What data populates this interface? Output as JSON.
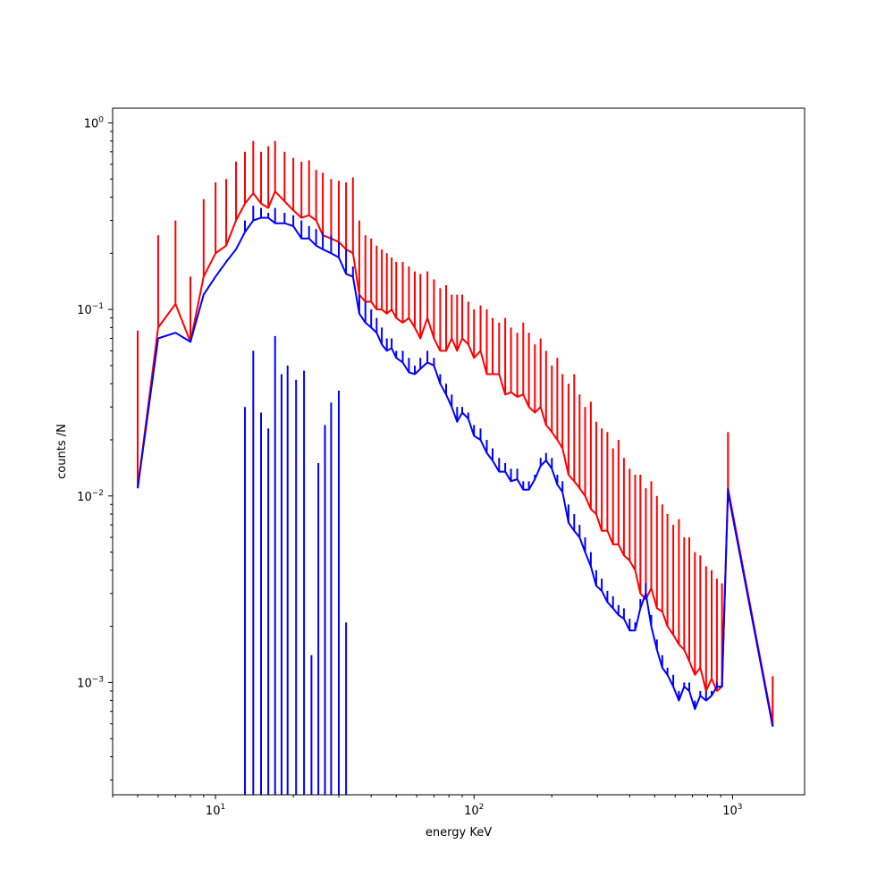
{
  "chart_data": {
    "type": "line",
    "xlabel": "energy KeV",
    "ylabel": "counts /N",
    "xscale": "log",
    "yscale": "log",
    "xlim": [
      4.0,
      1900
    ],
    "ylim": [
      0.00025,
      1.2
    ],
    "x_ticks": [
      {
        "value": 10,
        "base": "10",
        "exp": "1"
      },
      {
        "value": 100,
        "base": "10",
        "exp": "2"
      },
      {
        "value": 1000,
        "base": "10",
        "exp": "3"
      }
    ],
    "y_ticks": [
      {
        "value": 0.001,
        "base": "10",
        "exp": "−3"
      },
      {
        "value": 0.01,
        "base": "10",
        "exp": "−2"
      },
      {
        "value": 0.1,
        "base": "10",
        "exp": "−1"
      },
      {
        "value": 1,
        "base": "10",
        "exp": "0"
      }
    ],
    "grid": false,
    "legend": "none",
    "series": [
      {
        "color": "#ff0000",
        "points": [
          [
            5.0,
            0.011,
            0.077
          ],
          [
            6.0,
            0.08,
            0.25
          ],
          [
            7.0,
            0.107,
            0.3
          ],
          [
            8.0,
            0.067,
            0.15
          ],
          [
            9.0,
            0.15,
            0.39
          ],
          [
            10.0,
            0.2,
            0.48
          ],
          [
            11.0,
            0.22,
            0.5
          ],
          [
            12.0,
            0.3,
            0.62
          ],
          [
            13.0,
            0.37,
            0.7
          ],
          [
            14.0,
            0.42,
            0.8
          ],
          [
            15.0,
            0.37,
            0.7
          ],
          [
            16.0,
            0.35,
            0.75
          ],
          [
            17.0,
            0.43,
            0.8
          ],
          [
            18.5,
            0.38,
            0.7
          ],
          [
            20.0,
            0.34,
            0.65
          ],
          [
            21.5,
            0.31,
            0.62
          ],
          [
            23.0,
            0.32,
            0.63
          ],
          [
            24.5,
            0.3,
            0.56
          ],
          [
            26.0,
            0.25,
            0.54
          ],
          [
            28.0,
            0.24,
            0.5
          ],
          [
            30.0,
            0.23,
            0.49
          ],
          [
            32.0,
            0.21,
            0.48
          ],
          [
            34.0,
            0.2,
            0.51
          ],
          [
            36.0,
            0.12,
            0.3
          ],
          [
            38.0,
            0.11,
            0.25
          ],
          [
            40.0,
            0.11,
            0.24
          ],
          [
            42.0,
            0.1,
            0.22
          ],
          [
            44.0,
            0.1,
            0.21
          ],
          [
            46.0,
            0.095,
            0.2
          ],
          [
            48.0,
            0.1,
            0.19
          ],
          [
            50.0,
            0.09,
            0.18
          ],
          [
            53.0,
            0.085,
            0.18
          ],
          [
            56.0,
            0.09,
            0.17
          ],
          [
            59.0,
            0.08,
            0.16
          ],
          [
            62.0,
            0.07,
            0.155
          ],
          [
            66.0,
            0.09,
            0.16
          ],
          [
            70.0,
            0.07,
            0.145
          ],
          [
            74.0,
            0.06,
            0.13
          ],
          [
            78.0,
            0.06,
            0.135
          ],
          [
            82.0,
            0.07,
            0.12
          ],
          [
            86.0,
            0.06,
            0.12
          ],
          [
            90.0,
            0.07,
            0.12
          ],
          [
            95.0,
            0.065,
            0.11
          ],
          [
            100.0,
            0.055,
            0.1
          ],
          [
            106.0,
            0.06,
            0.105
          ],
          [
            112.0,
            0.045,
            0.1
          ],
          [
            118.0,
            0.045,
            0.09
          ],
          [
            125.0,
            0.045,
            0.085
          ],
          [
            132.0,
            0.035,
            0.09
          ],
          [
            139.0,
            0.036,
            0.08
          ],
          [
            147.0,
            0.034,
            0.075
          ],
          [
            155.0,
            0.035,
            0.085
          ],
          [
            163.0,
            0.03,
            0.075
          ],
          [
            172.0,
            0.028,
            0.065
          ],
          [
            181.0,
            0.03,
            0.07
          ],
          [
            190.0,
            0.024,
            0.06
          ],
          [
            200.0,
            0.022,
            0.05
          ],
          [
            210.0,
            0.02,
            0.055
          ],
          [
            220.0,
            0.018,
            0.045
          ],
          [
            232.0,
            0.013,
            0.04
          ],
          [
            244.0,
            0.012,
            0.045
          ],
          [
            256.0,
            0.011,
            0.035
          ],
          [
            269.0,
            0.01,
            0.03
          ],
          [
            283.0,
            0.0085,
            0.032
          ],
          [
            297.0,
            0.008,
            0.025
          ],
          [
            312.0,
            0.0065,
            0.023
          ],
          [
            328.0,
            0.0065,
            0.022
          ],
          [
            345.0,
            0.0055,
            0.018
          ],
          [
            362.0,
            0.0055,
            0.02
          ],
          [
            380.0,
            0.0048,
            0.016
          ],
          [
            400.0,
            0.0045,
            0.014
          ],
          [
            420.0,
            0.004,
            0.013
          ],
          [
            440.0,
            0.003,
            0.013
          ],
          [
            462.0,
            0.0028,
            0.011
          ],
          [
            485.0,
            0.0032,
            0.012
          ],
          [
            510.0,
            0.0025,
            0.01
          ],
          [
            535.0,
            0.0024,
            0.009
          ],
          [
            560.0,
            0.002,
            0.008
          ],
          [
            590.0,
            0.0018,
            0.007
          ],
          [
            620.0,
            0.0016,
            0.0075
          ],
          [
            650.0,
            0.0015,
            0.006
          ],
          [
            680.0,
            0.0013,
            0.006
          ],
          [
            715.0,
            0.0011,
            0.005
          ],
          [
            750.0,
            0.0012,
            0.0048
          ],
          [
            790.0,
            0.0009,
            0.0042
          ],
          [
            830.0,
            0.00105,
            0.004
          ],
          [
            870.0,
            0.0009,
            0.0036
          ],
          [
            910.0,
            0.00095,
            0.0034
          ],
          [
            960.0,
            0.011,
            0.022
          ],
          [
            1430.0,
            0.0006,
            0.00108
          ]
        ]
      },
      {
        "color": "#0000ff",
        "points": [
          [
            5.0,
            0.011,
            0.011
          ],
          [
            6.0,
            0.07,
            0.07
          ],
          [
            7.0,
            0.075,
            0.075
          ],
          [
            8.0,
            0.067,
            0.067
          ],
          [
            9.0,
            0.12,
            0.12
          ],
          [
            10.0,
            0.15,
            0.15
          ],
          [
            11.0,
            0.18,
            0.18
          ],
          [
            12.0,
            0.21,
            0.21
          ],
          [
            13.0,
            0.26,
            0.3
          ],
          [
            14.0,
            0.3,
            0.36
          ],
          [
            15.0,
            0.31,
            0.35
          ],
          [
            16.0,
            0.31,
            0.33
          ],
          [
            17.0,
            0.29,
            0.35
          ],
          [
            18.5,
            0.29,
            0.33
          ],
          [
            20.0,
            0.28,
            0.32
          ],
          [
            21.5,
            0.24,
            0.3
          ],
          [
            23.0,
            0.24,
            0.28
          ],
          [
            24.5,
            0.22,
            0.27
          ],
          [
            26.0,
            0.21,
            0.26
          ],
          [
            28.0,
            0.2,
            0.25
          ],
          [
            30.0,
            0.19,
            0.23
          ],
          [
            32.0,
            0.155,
            0.21
          ],
          [
            34.0,
            0.15,
            0.17
          ],
          [
            36.0,
            0.095,
            0.12
          ],
          [
            38.0,
            0.085,
            0.11
          ],
          [
            40.0,
            0.08,
            0.1
          ],
          [
            42.0,
            0.075,
            0.09
          ],
          [
            44.0,
            0.065,
            0.08
          ],
          [
            46.0,
            0.06,
            0.07
          ],
          [
            48.0,
            0.062,
            0.07
          ],
          [
            50.0,
            0.055,
            0.06
          ],
          [
            53.0,
            0.052,
            0.06
          ],
          [
            56.0,
            0.046,
            0.055
          ],
          [
            59.0,
            0.045,
            0.05
          ],
          [
            62.0,
            0.048,
            0.055
          ],
          [
            66.0,
            0.052,
            0.06
          ],
          [
            70.0,
            0.05,
            0.055
          ],
          [
            74.0,
            0.04,
            0.045
          ],
          [
            78.0,
            0.035,
            0.04
          ],
          [
            82.0,
            0.03,
            0.035
          ],
          [
            86.0,
            0.025,
            0.03
          ],
          [
            90.0,
            0.028,
            0.03
          ],
          [
            95.0,
            0.026,
            0.028
          ],
          [
            100.0,
            0.021,
            0.024
          ],
          [
            106.0,
            0.02,
            0.023
          ],
          [
            112.0,
            0.017,
            0.02
          ],
          [
            118.0,
            0.0155,
            0.018
          ],
          [
            125.0,
            0.0135,
            0.016
          ],
          [
            132.0,
            0.0135,
            0.015
          ],
          [
            139.0,
            0.012,
            0.014
          ],
          [
            147.0,
            0.0123,
            0.014
          ],
          [
            155.0,
            0.0108,
            0.012
          ],
          [
            163.0,
            0.0108,
            0.012
          ],
          [
            172.0,
            0.0123,
            0.013
          ],
          [
            181.0,
            0.0145,
            0.016
          ],
          [
            190.0,
            0.0155,
            0.017
          ],
          [
            200.0,
            0.014,
            0.016
          ],
          [
            210.0,
            0.0115,
            0.013
          ],
          [
            220.0,
            0.0105,
            0.012
          ],
          [
            232.0,
            0.0072,
            0.009
          ],
          [
            244.0,
            0.0065,
            0.008
          ],
          [
            256.0,
            0.006,
            0.007
          ],
          [
            269.0,
            0.005,
            0.006
          ],
          [
            283.0,
            0.0042,
            0.005
          ],
          [
            297.0,
            0.0033,
            0.004
          ],
          [
            312.0,
            0.0031,
            0.0036
          ],
          [
            328.0,
            0.0027,
            0.0031
          ],
          [
            345.0,
            0.0025,
            0.0029
          ],
          [
            362.0,
            0.0023,
            0.0026
          ],
          [
            380.0,
            0.0022,
            0.0025
          ],
          [
            400.0,
            0.0019,
            0.0022
          ],
          [
            420.0,
            0.0019,
            0.0021
          ],
          [
            440.0,
            0.0025,
            0.0028
          ],
          [
            462.0,
            0.003,
            0.0034
          ],
          [
            485.0,
            0.002,
            0.0023
          ],
          [
            510.0,
            0.0015,
            0.0017
          ],
          [
            535.0,
            0.0012,
            0.0014
          ],
          [
            560.0,
            0.0011,
            0.0012
          ],
          [
            590.0,
            0.00095,
            0.0011
          ],
          [
            620.0,
            0.0008,
            0.0009
          ],
          [
            650.0,
            0.00095,
            0.001
          ],
          [
            680.0,
            0.0009,
            0.001
          ],
          [
            715.0,
            0.00072,
            0.0008
          ],
          [
            750.0,
            0.00085,
            0.0009
          ],
          [
            790.0,
            0.0008,
            0.0009
          ],
          [
            830.0,
            0.00085,
            0.0009
          ],
          [
            870.0,
            0.00095,
            0.001
          ],
          [
            910.0,
            0.00095,
            0.001
          ],
          [
            960.0,
            0.0105,
            0.011
          ],
          [
            1430.0,
            0.00058,
            0.0006
          ]
        ],
        "bars_to_bottom": [
          [
            13.0,
            0.03
          ],
          [
            14.0,
            0.06
          ],
          [
            15.0,
            0.028
          ],
          [
            16.0,
            0.023
          ],
          [
            17.0,
            0.072
          ],
          [
            18.0,
            0.045
          ],
          [
            19.0,
            0.05
          ],
          [
            20.5,
            0.042
          ],
          [
            22.0,
            0.047
          ],
          [
            23.5,
            0.0014
          ],
          [
            25.0,
            0.015
          ],
          [
            26.5,
            0.024
          ],
          [
            28.0,
            0.0317
          ],
          [
            30.0,
            0.0367
          ],
          [
            32.0,
            0.0021
          ]
        ]
      }
    ]
  }
}
